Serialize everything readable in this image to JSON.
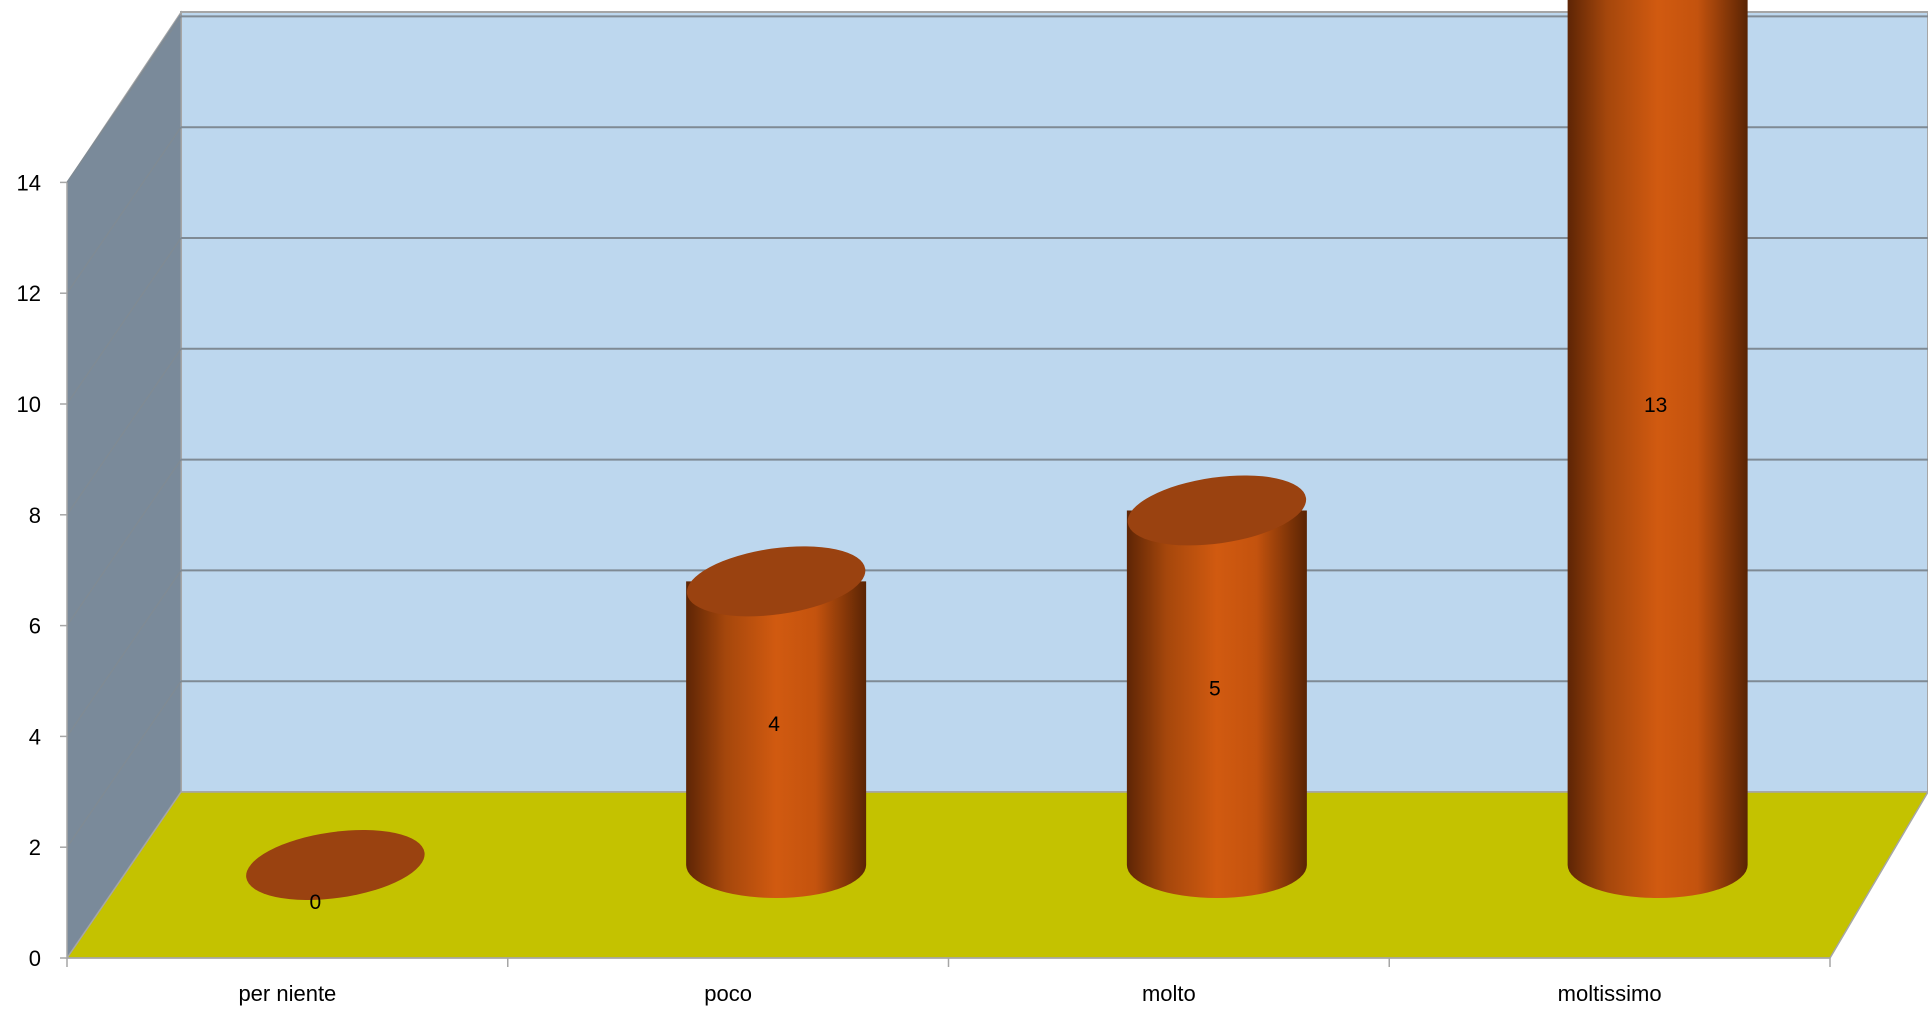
{
  "chart_data": {
    "type": "bar",
    "style": "3d-cylinder",
    "title": "",
    "xlabel": "",
    "ylabel": "",
    "categories": [
      "per niente",
      "poco",
      "molto",
      "moltissimo"
    ],
    "values": [
      0,
      4,
      5,
      13
    ],
    "data_labels": [
      "0",
      "4",
      "5",
      "13"
    ],
    "ylim": [
      0,
      14
    ],
    "y_ticks": [
      "0",
      "2",
      "4",
      "6",
      "8",
      "10",
      "12",
      "14"
    ],
    "grid": true,
    "legend": "none",
    "colors": {
      "bar": "#d0580f",
      "bar_dark": "#6a2c06",
      "bar_top": "#9a4210",
      "back_wall": "#bdd7ee",
      "side_wall": "#7a8a9a",
      "floor": "#c4c200",
      "grid_line": "#7f8a94",
      "axis_line": "#a6a6a6"
    }
  }
}
